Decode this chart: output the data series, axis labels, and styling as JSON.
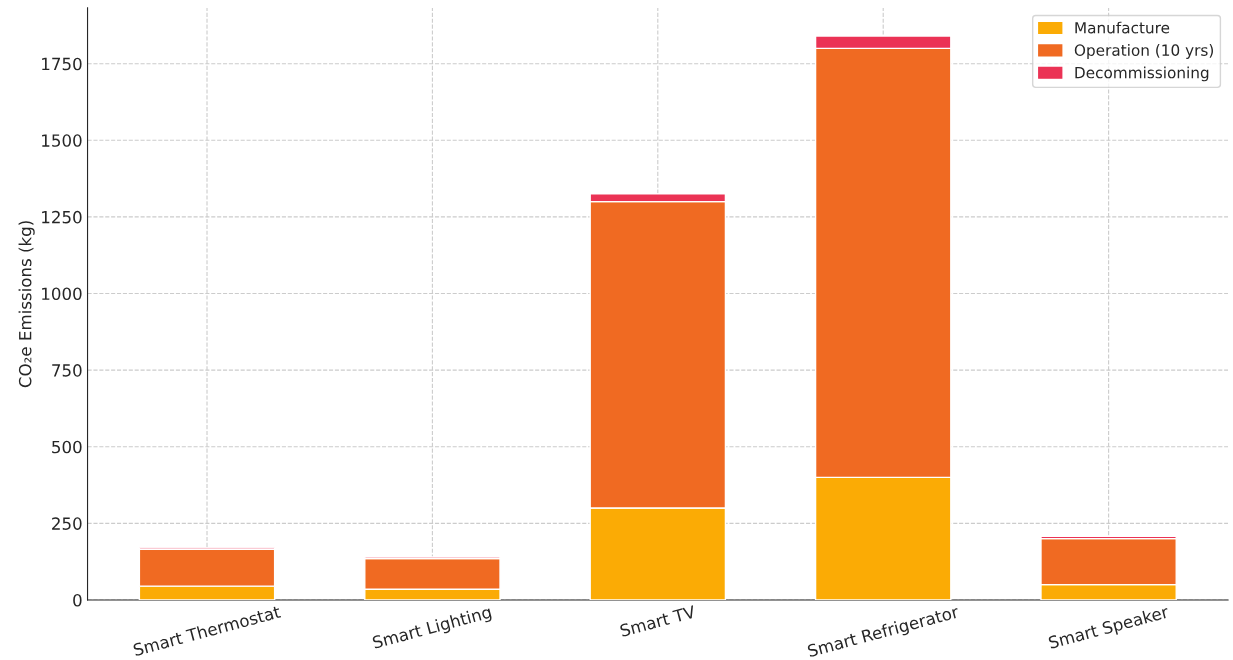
{
  "chart_data": {
    "type": "bar",
    "stacked": true,
    "ylabel": "CO₂e Emissions (kg)",
    "categories": [
      "Smart Thermostat",
      "Smart Lighting",
      "Smart TV",
      "Smart Refrigerator",
      "Smart Speaker"
    ],
    "series": [
      {
        "name": "Manufacture",
        "color": "#fbab05",
        "values": [
          45,
          35,
          300,
          400,
          50
        ]
      },
      {
        "name": "Operation (10 yrs)",
        "color": "#f06a22",
        "values": [
          120,
          100,
          1000,
          1400,
          150
        ]
      },
      {
        "name": "Decommissioning",
        "color": "#eb3355",
        "values": [
          5,
          5,
          25,
          40,
          8
        ]
      }
    ],
    "ylim": [
      0,
      1932
    ],
    "yticks": [
      0,
      250,
      500,
      750,
      1000,
      1250,
      1500,
      1750
    ],
    "grid": true,
    "legend": "top right"
  }
}
